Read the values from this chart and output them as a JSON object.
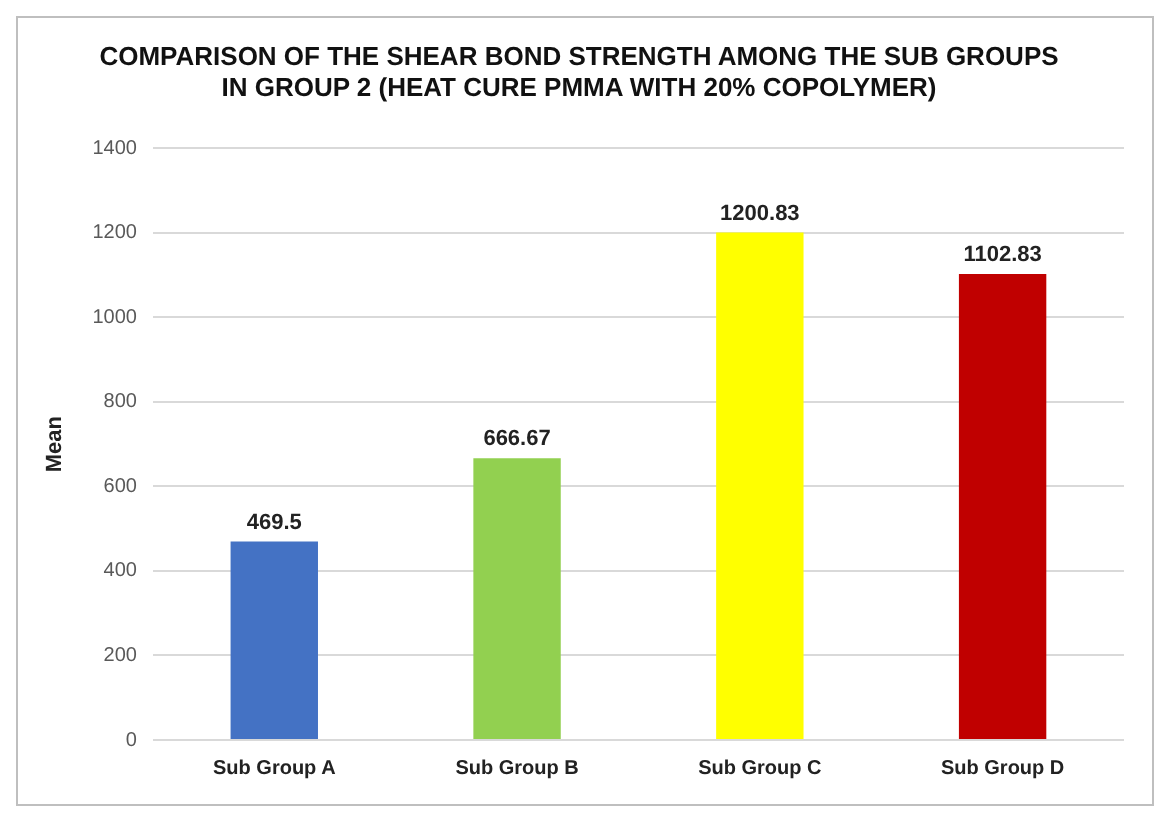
{
  "chart_data": {
    "type": "bar",
    "title": "COMPARISON OF THE SHEAR BOND STRENGTH AMONG THE SUB GROUPS\nIN GROUP 2 (HEAT CURE PMMA WITH 20% COPOLYMER)",
    "ylabel": "Mean",
    "categories": [
      "Sub Group A",
      "Sub Group B",
      "Sub Group C",
      "Sub Group D"
    ],
    "values": [
      469.5,
      666.67,
      1200.83,
      1102.83
    ],
    "colors": [
      "#4472c4",
      "#92d050",
      "#ffff00",
      "#c00000"
    ],
    "ylim": [
      0,
      1400
    ],
    "yticks": [
      0,
      200,
      400,
      600,
      800,
      1000,
      1200,
      1400
    ],
    "grid": "y",
    "data_labels": true,
    "legend": false
  }
}
